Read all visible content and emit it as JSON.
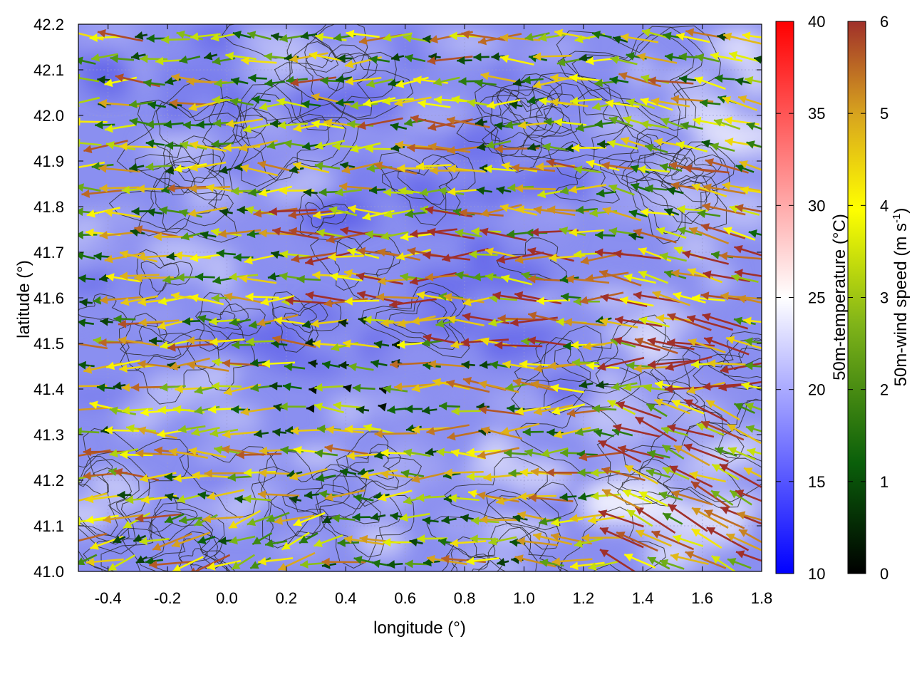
{
  "chart_data": {
    "type": "heatmap",
    "title": "",
    "xlabel": "longitude (°)",
    "ylabel": "latitude (°)",
    "xlim": [
      -0.5,
      1.8
    ],
    "ylim": [
      41.0,
      42.2
    ],
    "xticks": [
      -0.4,
      -0.2,
      0.0,
      0.2,
      0.4,
      0.6,
      0.8,
      1.0,
      1.2,
      1.4,
      1.6,
      1.8
    ],
    "xtick_labels": [
      "-0.4",
      "-0.2",
      "0.0",
      "0.2",
      "0.4",
      "0.6",
      "0.8",
      "1.0",
      "1.2",
      "1.4",
      "1.6",
      "1.8"
    ],
    "yticks": [
      41.0,
      41.1,
      41.2,
      41.3,
      41.4,
      41.5,
      41.6,
      41.7,
      41.8,
      41.9,
      42.0,
      42.1,
      42.2
    ],
    "ytick_labels": [
      "41.0",
      "41.1",
      "41.2",
      "41.3",
      "41.4",
      "41.5",
      "41.6",
      "41.7",
      "41.8",
      "41.9",
      "42.0",
      "42.1",
      "42.2"
    ],
    "grid": true,
    "layers": [
      {
        "kind": "heatmap",
        "variable": "50m-temperature",
        "unit": "°C",
        "approx_range": [
          17,
          23
        ],
        "dominant": "blue-white"
      },
      {
        "kind": "vector-field",
        "variable": "50m-wind",
        "dominant_direction": "westward",
        "speed_range": [
          0,
          6
        ]
      },
      {
        "kind": "contour",
        "variable": "terrain",
        "color": "#333333"
      }
    ],
    "colorbars": [
      {
        "label": "50m-temperature (°C)",
        "range": [
          10,
          40
        ],
        "ticks": [
          10,
          15,
          20,
          25,
          30,
          35,
          40
        ],
        "tick_labels": [
          "10",
          "15",
          "20",
          "25",
          "30",
          "35",
          "40"
        ],
        "colors": [
          "#0000ff",
          "#ffffff",
          "#ff0000"
        ]
      },
      {
        "label_main": "50m-wind speed (m s",
        "label_sup": "-1",
        "label_end": ")",
        "range": [
          0,
          6
        ],
        "ticks": [
          0,
          1,
          2,
          3,
          4,
          5,
          6
        ],
        "tick_labels": [
          "0",
          "1",
          "2",
          "3",
          "4",
          "5",
          "6"
        ],
        "colors": [
          "#000000",
          "#0a5f0a",
          "#7fb319",
          "#ffff00",
          "#d8a51e",
          "#a0302a"
        ]
      }
    ]
  }
}
